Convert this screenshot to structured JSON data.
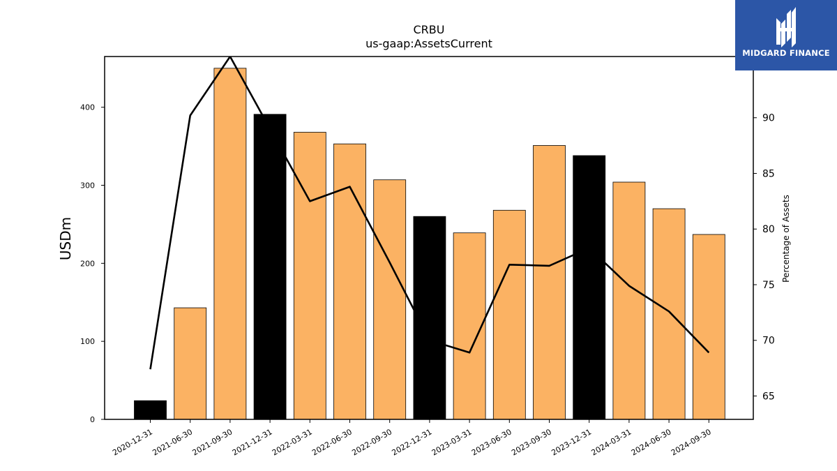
{
  "chart_data": {
    "type": "bar",
    "title": "CRBU",
    "subtitle": "us-gaap:AssetsCurrent",
    "ylabel": "USDm",
    "y2label": "Percentage of Assets",
    "categories": [
      "2020-12-31",
      "2021-06-30",
      "2021-09-30",
      "2021-12-31",
      "2022-03-31",
      "2022-06-30",
      "2022-09-30",
      "2022-12-31",
      "2023-03-31",
      "2023-06-30",
      "2023-09-30",
      "2023-12-31",
      "2024-03-31",
      "2024-06-30",
      "2024-09-30"
    ],
    "series": [
      {
        "type": "bar",
        "values": [
          24,
          143,
          450,
          391,
          368,
          353,
          307,
          260,
          239,
          268,
          351,
          338,
          304,
          270,
          237
        ],
        "highlight": [
          true,
          false,
          false,
          true,
          false,
          false,
          false,
          true,
          false,
          false,
          false,
          true,
          false,
          false,
          false
        ]
      },
      {
        "type": "line",
        "axis": "right",
        "values": [
          67.4,
          90.2,
          95.5,
          89.0,
          82.5,
          83.8,
          77.0,
          70.0,
          68.9,
          76.8,
          76.7,
          78.3,
          74.9,
          72.6,
          68.9
        ]
      }
    ],
    "ylim": [
      0,
      465
    ],
    "y2lim": [
      62.9,
      95.5
    ],
    "yticks": [
      0,
      100,
      200,
      300,
      400
    ],
    "y2ticks": [
      65,
      70,
      75,
      80,
      85,
      90
    ],
    "colors": {
      "bar": "#fbb263",
      "highlight": "#000000",
      "line": "#000000"
    }
  },
  "logo": {
    "text": "MIDGARD FINANCE",
    "color": "#2c56a7"
  }
}
